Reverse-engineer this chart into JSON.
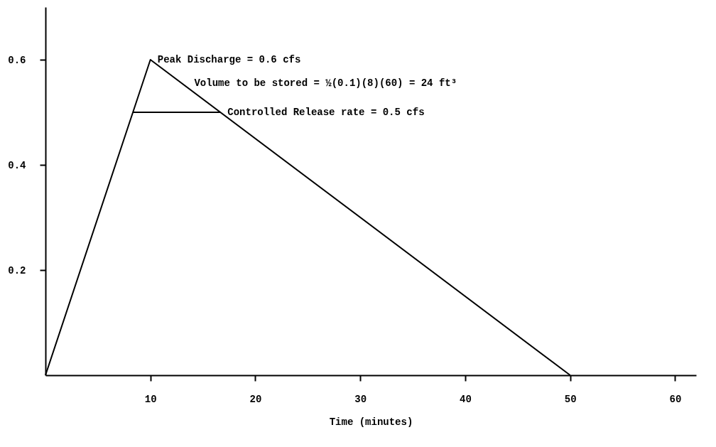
{
  "chart_data": {
    "type": "line",
    "xlabel": "Time (minutes)",
    "xlim": [
      0,
      62
    ],
    "ylim": [
      0,
      0.7
    ],
    "xticks": [
      10,
      20,
      30,
      40,
      50,
      60
    ],
    "yticks": [
      0.2,
      0.4,
      0.6
    ],
    "series": [
      {
        "x": [
          0,
          10,
          50
        ],
        "values": [
          0,
          0.6,
          0
        ],
        "color": "#000000"
      },
      {
        "x": [
          8.33,
          16.67
        ],
        "values": [
          0.5,
          0.5
        ],
        "color": "#000000"
      }
    ],
    "annotations": [
      {
        "text": "Peak Discharge = 0.6 cfs",
        "x": 10,
        "y": 0.6
      },
      {
        "text": "Volume to be stored = ½(0.1)(8)(60) = 24 ft³",
        "x": 13.5,
        "y": 0.555
      },
      {
        "text": "Controlled Release rate = 0.5 cfs",
        "x": 16.67,
        "y": 0.5
      }
    ],
    "grid": false,
    "marker": "none",
    "line_style": "solid"
  }
}
